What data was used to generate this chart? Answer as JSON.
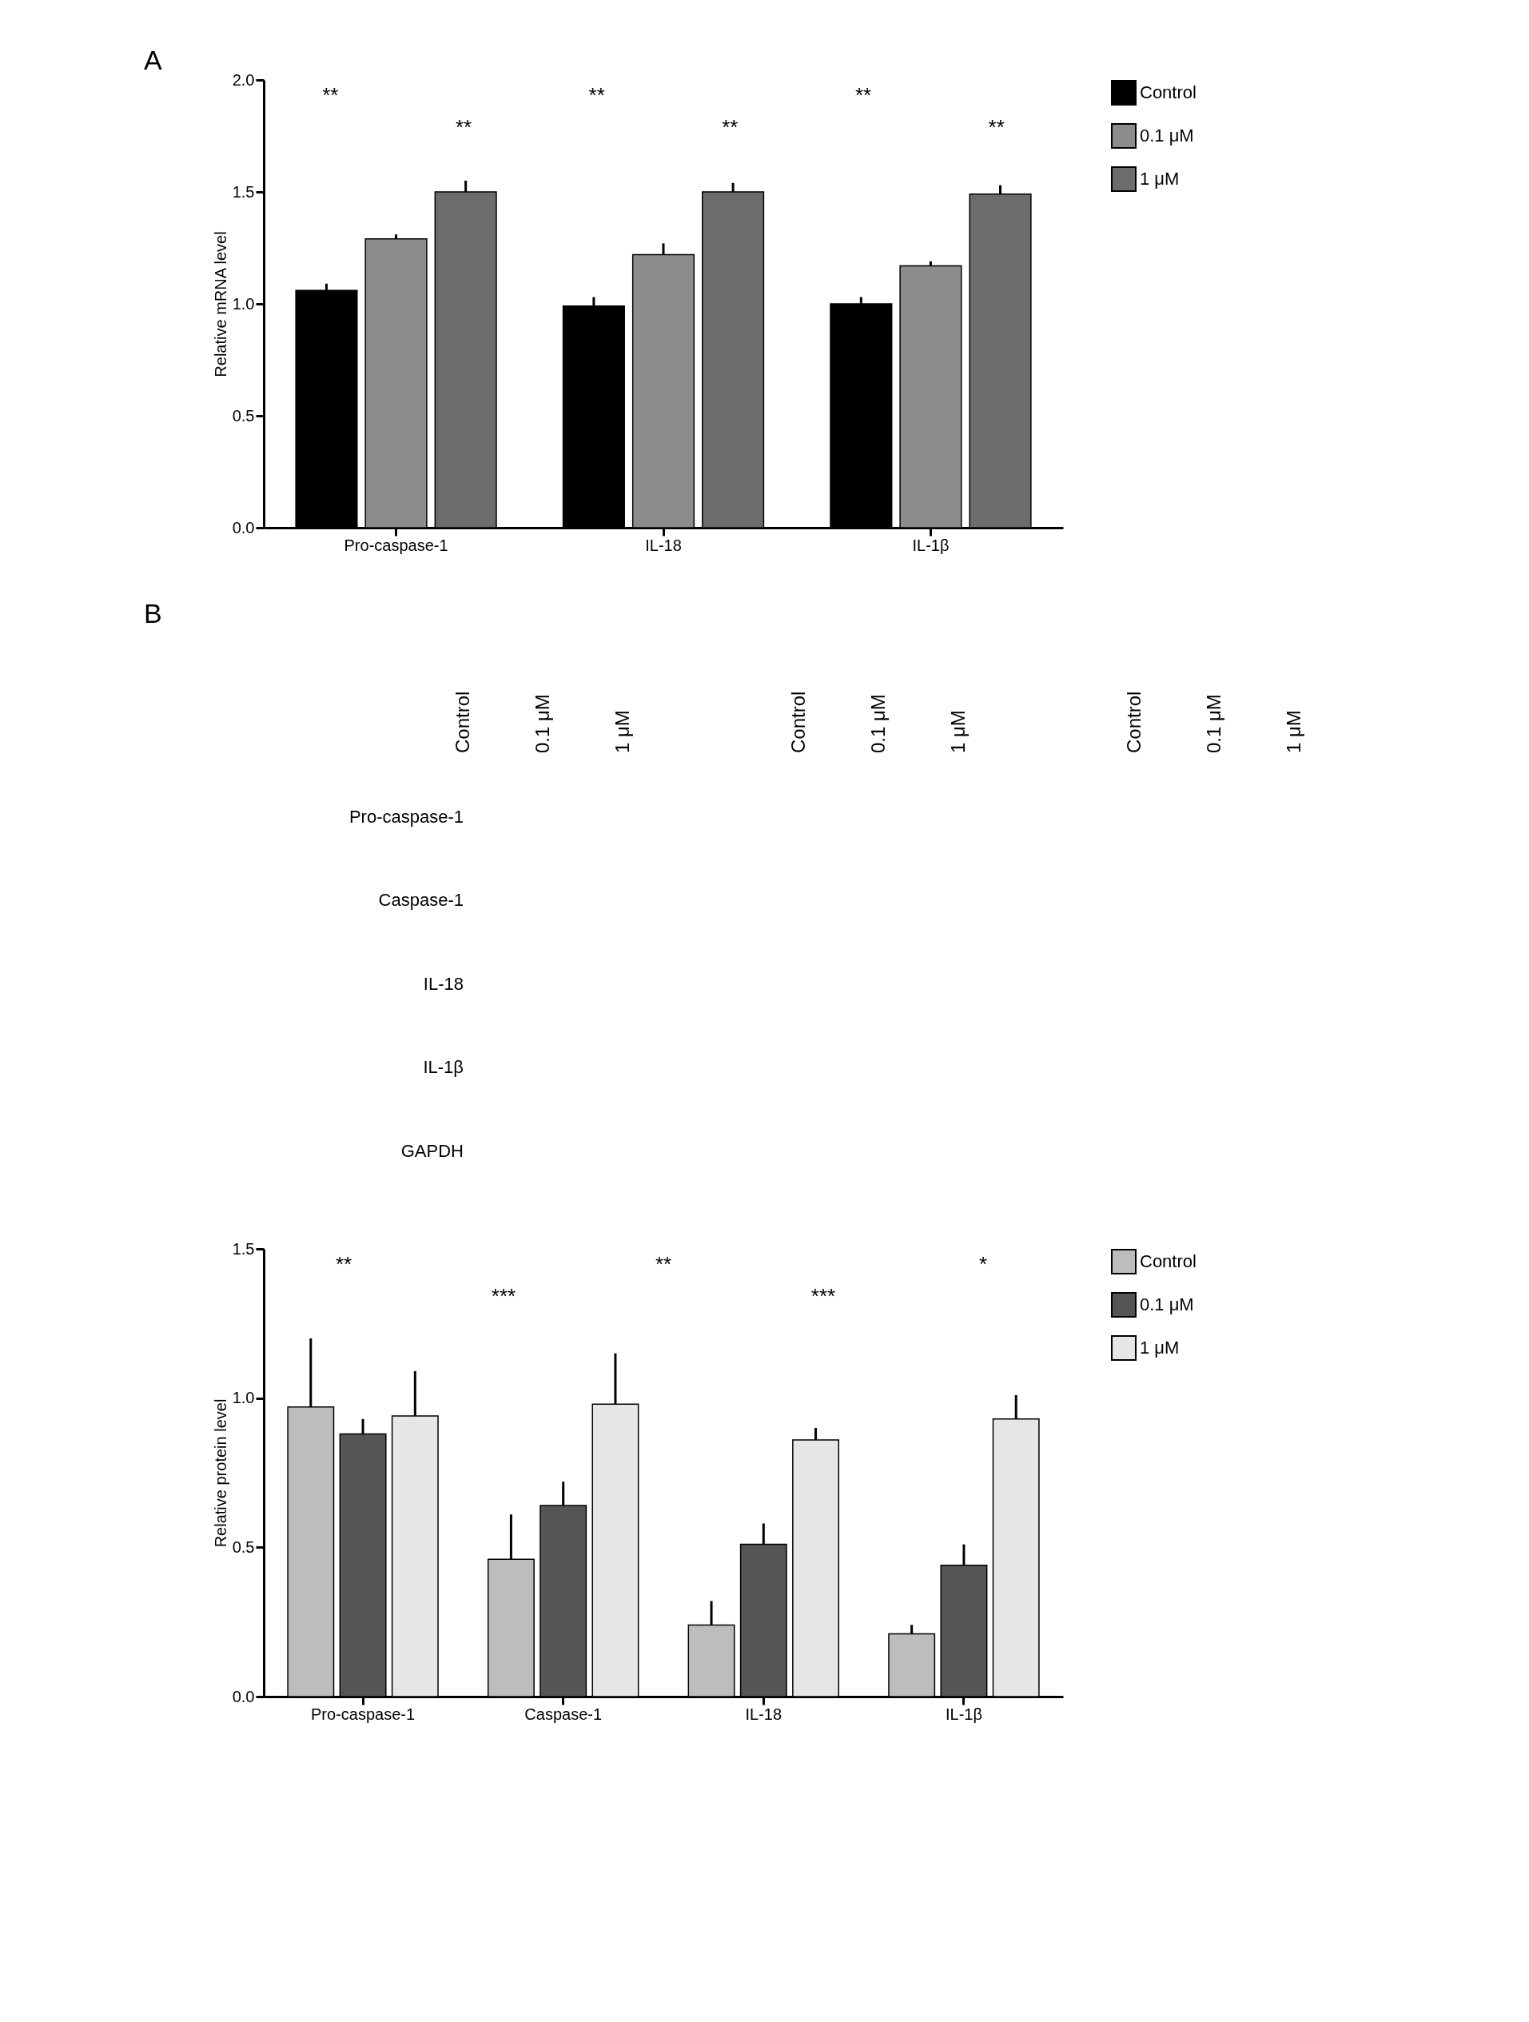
{
  "chart_data": [
    {
      "type": "bar",
      "ylabel": "Relative mRNA level",
      "categories": [
        "Pro-caspase-1",
        "IL-18",
        "IL-1β"
      ],
      "ylim": [
        0,
        2.0
      ],
      "yticks": [
        {
          "value": 0,
          "label": "0.0"
        },
        {
          "value": 0.5,
          "label": "0.5"
        },
        {
          "value": 1,
          "label": "1.0"
        },
        {
          "value": 1.5,
          "label": "1.5"
        },
        {
          "value": 2,
          "label": "2.0"
        }
      ],
      "grid": false,
      "legend": "right",
      "series": [
        {
          "name": "Control",
          "color": "#000000",
          "values": [
            1.06,
            0.99,
            1.0
          ],
          "errors": [
            0.03,
            0.04,
            0.03
          ]
        },
        {
          "name": "0.1 μM",
          "color": "#8c8c8c",
          "values": [
            1.29,
            1.22,
            1.17
          ],
          "errors": [
            0.02,
            0.05,
            0.02
          ]
        },
        {
          "name": "1 μM",
          "color": "#6c6c6c",
          "values": [
            1.5,
            1.5,
            1.49
          ],
          "errors": [
            0.05,
            0.04,
            0.04
          ]
        }
      ],
      "title": "A",
      "annotations": [
        "**",
        "**",
        "**",
        "**",
        "**",
        "**"
      ]
    },
    {
      "type": "other",
      "categories": [
        "Control",
        "0.1 μM",
        "1 μM",
        "Control",
        "0.1 μM",
        "1 μM",
        "Control",
        "0.1 μM",
        "1 μM"
      ],
      "y_categories": [
        "Pro-caspase-1",
        "Caspase-1",
        "IL-18",
        "IL-1β",
        "GAPDH"
      ],
      "title": "B"
    },
    {
      "type": "bar",
      "ylabel": "Relative protein level",
      "categories": [
        "Pro-caspase-1",
        "Caspase-1",
        "IL-18",
        "IL-1β"
      ],
      "ylim": [
        0,
        1.5
      ],
      "yticks": [
        {
          "value": 0,
          "label": "0.0"
        },
        {
          "value": 0.5,
          "label": "0.5"
        },
        {
          "value": 1,
          "label": "1.0"
        },
        {
          "value": 1.5,
          "label": "1.5"
        }
      ],
      "grid": false,
      "legend": "right",
      "series": [
        {
          "name": "Control",
          "color": "#bdbdbd",
          "values": [
            0.97,
            0.46,
            0.24,
            0.21
          ],
          "errors": [
            0.23,
            0.15,
            0.08,
            0.03
          ]
        },
        {
          "name": "0.1 μM",
          "color": "#555555",
          "values": [
            0.88,
            0.64,
            0.51,
            0.44
          ],
          "errors": [
            0.05,
            0.08,
            0.07,
            0.07
          ]
        },
        {
          "name": "1 μM",
          "color": "#e6e6e6",
          "values": [
            0.94,
            0.98,
            0.86,
            0.93
          ],
          "errors": [
            0.15,
            0.17,
            0.04,
            0.08
          ]
        }
      ],
      "annotations": [
        "**",
        "***",
        "**",
        "***",
        "*"
      ]
    }
  ]
}
